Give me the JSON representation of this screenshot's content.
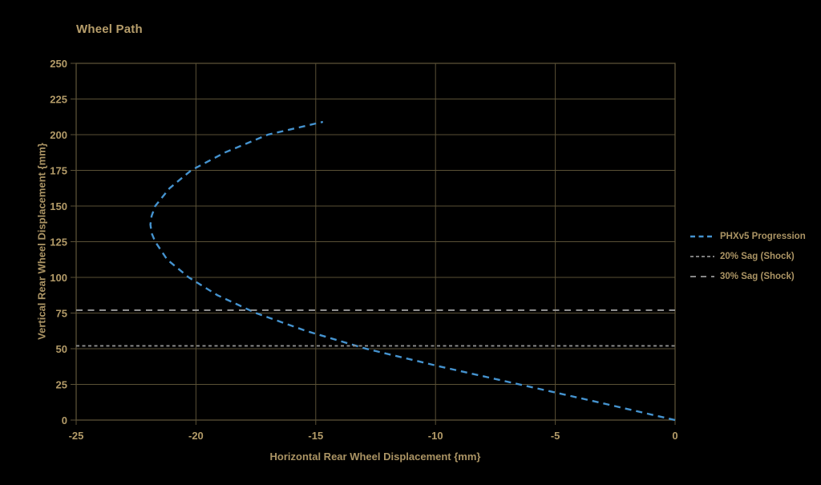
{
  "title": "Wheel Path",
  "axes": {
    "x_label": "Horizontal Rear Wheel Displacement {mm}",
    "y_label": "Vertical Rear Wheel Displacement {mm}"
  },
  "legend": {
    "items": [
      {
        "label": "PHXv5 Progression",
        "color": "#4593cf",
        "dash": "6,4.5",
        "width": 2.6
      },
      {
        "label": "20% Sag (Shock)",
        "color": "#8f8f8f",
        "dash": "4,3",
        "width": 1.8
      },
      {
        "label": "30% Sag (Shock)",
        "color": "#9a9a9a",
        "dash": "7,6",
        "width": 1.8
      }
    ]
  },
  "colors": {
    "background": "#000000",
    "text_gold": "#b39b68",
    "grid": "#5a5136",
    "curve_blue": "#4593cf",
    "sag20_gray": "#8f8f8f",
    "sag30_gray": "#9a9a9a"
  },
  "chart_data": {
    "type": "line",
    "title": "Wheel Path",
    "xlabel": "Horizontal Rear Wheel Displacement {mm}",
    "ylabel": "Vertical Rear Wheel Displacement {mm}",
    "xlim": [
      -25,
      0
    ],
    "ylim": [
      0,
      250
    ],
    "x_ticks": [
      -25,
      -20,
      -15,
      -10,
      -5,
      0
    ],
    "y_ticks": [
      0,
      25,
      50,
      75,
      100,
      125,
      150,
      175,
      200,
      225,
      250
    ],
    "grid": true,
    "legend_position": "right",
    "series": [
      {
        "name": "PHXv5 Progression",
        "kind": "curve",
        "style": "dashed",
        "color": "#4593cf",
        "points": [
          [
            0,
            0
          ],
          [
            -3.2,
            12.5
          ],
          [
            -6.5,
            25
          ],
          [
            -9.8,
            37.5
          ],
          [
            -12.9,
            50
          ],
          [
            -15.4,
            62.5
          ],
          [
            -17.5,
            75
          ],
          [
            -19.1,
            87.5
          ],
          [
            -20.3,
            100
          ],
          [
            -21.2,
            112.5
          ],
          [
            -21.7,
            125
          ],
          [
            -21.85,
            131
          ],
          [
            -21.9,
            137
          ],
          [
            -21.85,
            143
          ],
          [
            -21.7,
            150
          ],
          [
            -21.1,
            162.5
          ],
          [
            -20.2,
            175
          ],
          [
            -18.8,
            187.5
          ],
          [
            -17.0,
            200
          ],
          [
            -14.7,
            209
          ]
        ]
      },
      {
        "name": "20% Sag (Shock)",
        "kind": "hline",
        "y": 52,
        "color": "#8f8f8f",
        "dash": "4,3.5",
        "width": 1.8
      },
      {
        "name": "30% Sag (Shock)",
        "kind": "hline",
        "y": 77,
        "color": "#9a9a9a",
        "dash": "8,6.5",
        "width": 1.8
      }
    ]
  }
}
